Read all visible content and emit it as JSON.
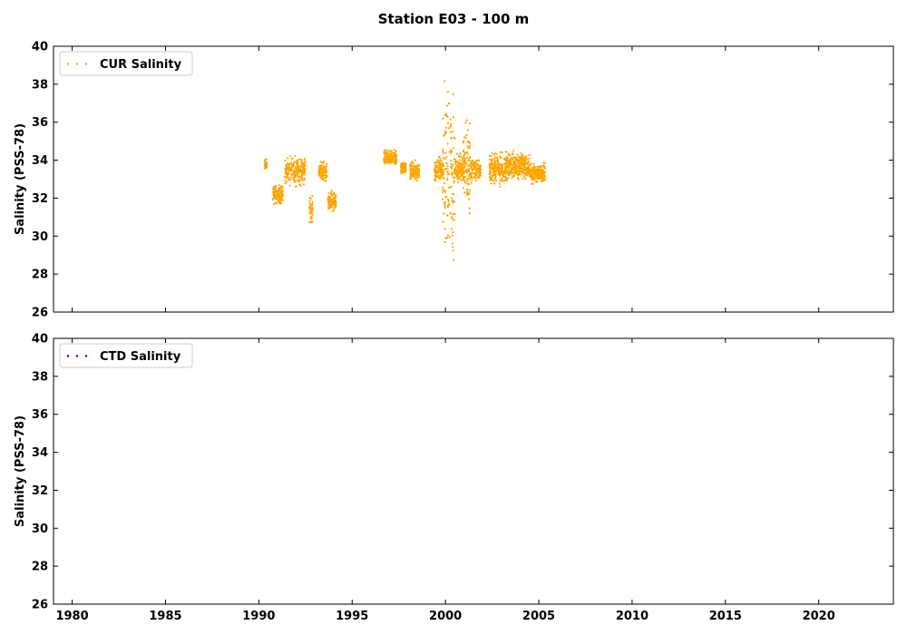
{
  "chart_data": {
    "title": "Station E03 - 100 m",
    "type": "scatter",
    "x_ticks": [
      "1980",
      "1985",
      "1990",
      "1995",
      "2000",
      "2005",
      "2010",
      "2015",
      "2020"
    ],
    "xlim": [
      1979,
      2024
    ],
    "y_ticks": [
      "26",
      "28",
      "30",
      "32",
      "34",
      "36",
      "38",
      "40"
    ],
    "panels": [
      {
        "name": "cur",
        "ylabel": "Salinity (PSS-78)",
        "ylim": [
          26,
          40
        ],
        "legend": {
          "label": "CUR Salinity",
          "placement": "upper-left"
        },
        "color": "#ffa500",
        "clusters": [
          {
            "x0": 1990.3,
            "x1": 1990.45,
            "ymin": 33.4,
            "ymax": 34.1
          },
          {
            "x0": 1990.75,
            "x1": 1991.3,
            "ymin": 31.6,
            "ymax": 32.8
          },
          {
            "x0": 1991.4,
            "x1": 1992.5,
            "ymin": 32.6,
            "ymax": 34.3
          },
          {
            "x0": 1992.7,
            "x1": 1992.9,
            "ymin": 30.6,
            "ymax": 32.2
          },
          {
            "x0": 1993.2,
            "x1": 1993.65,
            "ymin": 32.8,
            "ymax": 34.0
          },
          {
            "x0": 1993.7,
            "x1": 1994.15,
            "ymin": 31.2,
            "ymax": 32.4
          },
          {
            "x0": 1996.7,
            "x1": 1997.4,
            "ymin": 33.6,
            "ymax": 34.6
          },
          {
            "x0": 1997.6,
            "x1": 1997.9,
            "ymin": 33.2,
            "ymax": 34.0
          },
          {
            "x0": 1998.1,
            "x1": 1998.6,
            "ymin": 32.8,
            "ymax": 34.0
          },
          {
            "x0": 1999.4,
            "x1": 1999.9,
            "ymin": 32.8,
            "ymax": 34.2
          },
          {
            "x0": 1999.85,
            "x1": 2000.5,
            "ymin": 27.7,
            "ymax": 39.2
          },
          {
            "x0": 2000.5,
            "x1": 2001.05,
            "ymin": 32.6,
            "ymax": 34.5
          },
          {
            "x0": 2000.95,
            "x1": 2001.35,
            "ymin": 31.2,
            "ymax": 36.3
          },
          {
            "x0": 2001.35,
            "x1": 2001.9,
            "ymin": 32.7,
            "ymax": 34.3
          },
          {
            "x0": 2002.35,
            "x1": 2003.3,
            "ymin": 32.6,
            "ymax": 34.5
          },
          {
            "x0": 2003.2,
            "x1": 2004.5,
            "ymin": 32.9,
            "ymax": 34.5
          },
          {
            "x0": 2004.5,
            "x1": 2005.35,
            "ymin": 32.7,
            "ymax": 33.9
          }
        ]
      },
      {
        "name": "ctd",
        "ylabel": "Salinity (PSS-78)",
        "ylim": [
          26,
          40
        ],
        "legend": {
          "label": "CTD Salinity",
          "placement": "upper-left"
        },
        "color": "#0000ff",
        "clusters": []
      }
    ]
  }
}
